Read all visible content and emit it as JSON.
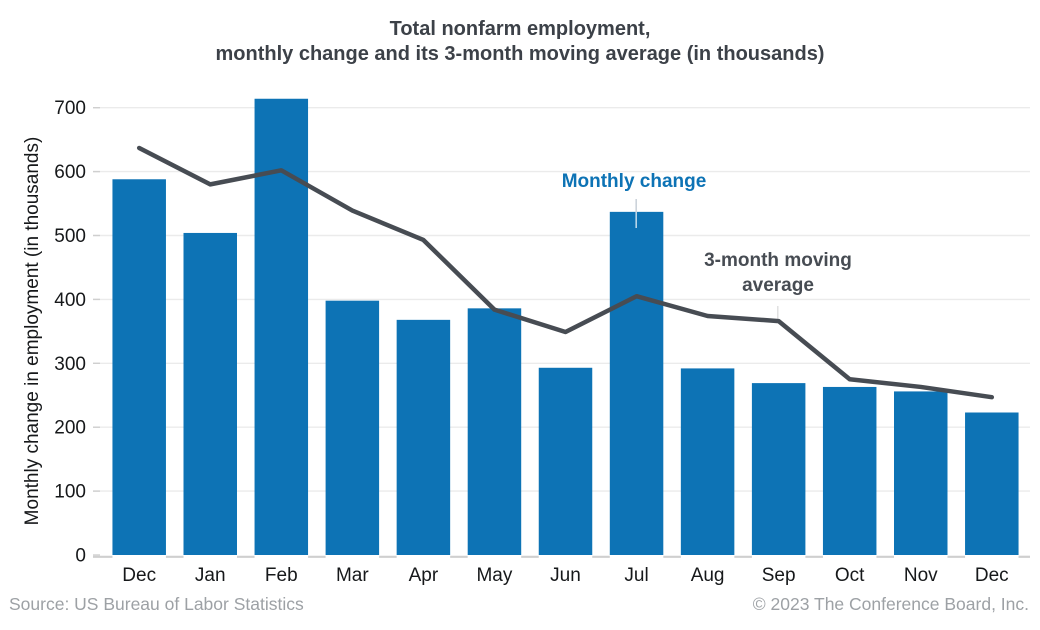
{
  "title": {
    "line1": "Total nonfarm employment,",
    "line2": "monthly change and its 3-month moving average (in thousands)"
  },
  "chart_data": {
    "type": "bar",
    "title": "Total nonfarm employment, monthly change and its 3-month moving average (in thousands)",
    "categories": [
      "Dec",
      "Jan",
      "Feb",
      "Mar",
      "Apr",
      "May",
      "Jun",
      "Jul",
      "Aug",
      "Sep",
      "Oct",
      "Nov",
      "Dec"
    ],
    "series": [
      {
        "name": "Monthly change",
        "type": "bar",
        "color": "#0d73b5",
        "values": [
          588,
          504,
          714,
          398,
          368,
          386,
          293,
          537,
          292,
          269,
          263,
          256,
          223
        ]
      },
      {
        "name": "3-month moving average",
        "type": "line",
        "color": "#474c53",
        "values": [
          637,
          580,
          602,
          539,
          493,
          384,
          349,
          405,
          374,
          366,
          275,
          263,
          247
        ]
      }
    ],
    "xlabel": "",
    "ylabel": "Monthly change in employment (in thousands)",
    "ylim": [
      0,
      700
    ],
    "yticks": [
      0,
      100,
      200,
      300,
      400,
      500,
      600,
      700
    ],
    "grid": "horizontal",
    "legend_position": "inline-annotations"
  },
  "annotations": {
    "monthly_change": "Monthly change",
    "moving_average_line1": "3-month moving",
    "moving_average_line2": "average"
  },
  "footer": {
    "source": "Source: US Bureau of Labor Statistics",
    "copyright": "© 2023 The Conference Board, Inc."
  },
  "colors": {
    "bar": "#0d73b5",
    "line": "#474c53",
    "grid": "#ebebeb",
    "axis": "#cfcfcf",
    "tick_text": "#16181a",
    "title_text": "#3c4148",
    "footer_text": "#9da1a5"
  }
}
